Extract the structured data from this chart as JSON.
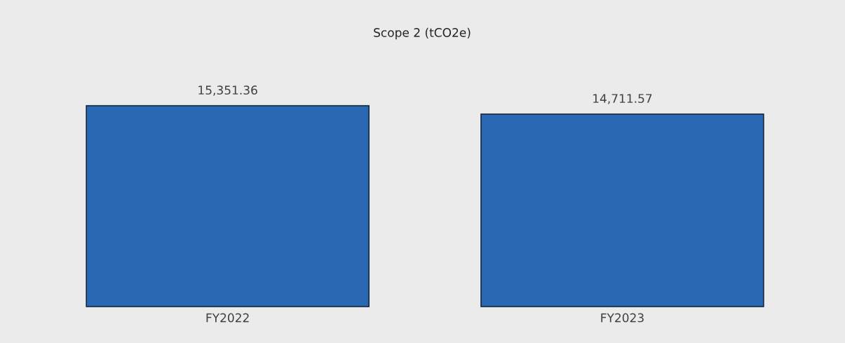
{
  "chart_data": {
    "type": "bar",
    "title": "Scope 2 (tCO2e)",
    "categories": [
      "FY2022",
      "FY2023"
    ],
    "values": [
      15351.36,
      14711.57
    ],
    "value_labels": [
      "15,351.36",
      "14,711.57"
    ],
    "color": "#2a68b4"
  }
}
